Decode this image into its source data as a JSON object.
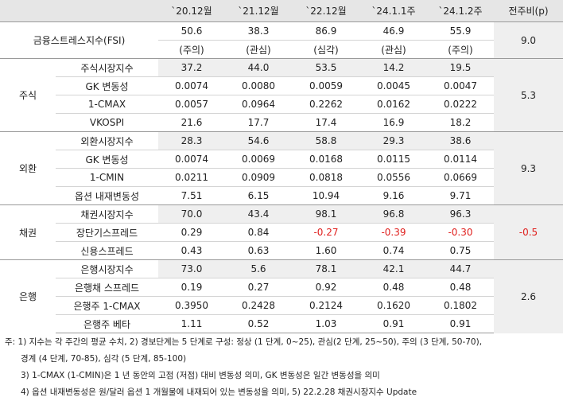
{
  "header": [
    "",
    "",
    "`20.12월",
    "`21.12월",
    "`22.12월",
    "`24.1.1주",
    "`24.1.2주",
    "전주비(p)"
  ],
  "fsi": {
    "label": "금융스트레스지수(FSI)",
    "values": [
      "50.6",
      "38.3",
      "86.9",
      "46.9",
      "55.9"
    ],
    "levels": [
      "(주의)",
      "(관심)",
      "(심각)",
      "(관심)",
      "(주의)"
    ],
    "change": "9.0"
  },
  "sections": [
    {
      "name": "주식",
      "change": "5.3",
      "rows": [
        {
          "label": "주식시장지수",
          "values": [
            "37.2",
            "44.0",
            "53.5",
            "14.2",
            "19.5"
          ]
        },
        {
          "label": "GK 변동성",
          "values": [
            "0.0074",
            "0.0080",
            "0.0059",
            "0.0045",
            "0.0047"
          ]
        },
        {
          "label": "1-CMAX",
          "values": [
            "0.0057",
            "0.0964",
            "0.2262",
            "0.0162",
            "0.0222"
          ]
        },
        {
          "label": "VKOSPI",
          "values": [
            "21.6",
            "17.7",
            "17.4",
            "16.9",
            "18.2"
          ]
        }
      ]
    },
    {
      "name": "외환",
      "change": "9.3",
      "rows": [
        {
          "label": "외환시장지수",
          "values": [
            "28.3",
            "54.6",
            "58.8",
            "29.3",
            "38.6"
          ]
        },
        {
          "label": "GK 변동성",
          "values": [
            "0.0074",
            "0.0069",
            "0.0168",
            "0.0115",
            "0.0114"
          ]
        },
        {
          "label": "1-CMIN",
          "values": [
            "0.0211",
            "0.0909",
            "0.0818",
            "0.0556",
            "0.0669"
          ]
        },
        {
          "label": "옵션 내재변동성",
          "values": [
            "7.51",
            "6.15",
            "10.94",
            "9.16",
            "9.71"
          ]
        }
      ]
    },
    {
      "name": "채권",
      "change": "-0.5",
      "rows": [
        {
          "label": "채권시장지수",
          "values": [
            "70.0",
            "43.4",
            "98.1",
            "96.8",
            "96.3"
          ]
        },
        {
          "label": "장단기스프레드",
          "values": [
            "0.29",
            "0.84",
            "-0.27",
            "-0.39",
            "-0.30"
          ]
        },
        {
          "label": "신용스프레드",
          "values": [
            "0.43",
            "0.63",
            "1.60",
            "0.74",
            "0.75"
          ]
        }
      ]
    },
    {
      "name": "은행",
      "change": "2.6",
      "rows": [
        {
          "label": "은행시장지수",
          "values": [
            "73.0",
            "5.6",
            "78.1",
            "42.1",
            "44.7"
          ]
        },
        {
          "label": "은행채 스프레드",
          "values": [
            "0.19",
            "0.27",
            "0.92",
            "0.48",
            "0.48"
          ]
        },
        {
          "label": "은행주 1-CMAX",
          "values": [
            "0.3950",
            "0.2428",
            "0.2124",
            "0.1620",
            "0.1802"
          ]
        },
        {
          "label": "은행주 베타",
          "values": [
            "1.11",
            "0.52",
            "1.03",
            "0.91",
            "0.91"
          ]
        }
      ]
    }
  ],
  "colors": {
    "negative": "#e0201e",
    "header_bg": "#e6e6e6",
    "index_bg": "#efefef"
  },
  "notes": [
    "주: 1) 지수는 각 주간의 평균 수치, 2) 경보단계는 5 단계로 구성: 정상 (1 단계, 0~25), 관심(2 단계, 25~50), 주의 (3 단계, 50-70),",
    "경계 (4 단계, 70-85), 심각 (5 단계, 85-100)",
    "3) 1-CMAX (1-CMIN)은 1 년 동안의 고점 (저점) 대비 변동성 의미, GK 변동성은 일간 변동성을 의미",
    "4) 옵션 내재변동성은 원/달러 옵션 1 개월물에 내재되어 있는 변동성을 의미, 5) 22.2.28 채권시장지수 Update"
  ]
}
